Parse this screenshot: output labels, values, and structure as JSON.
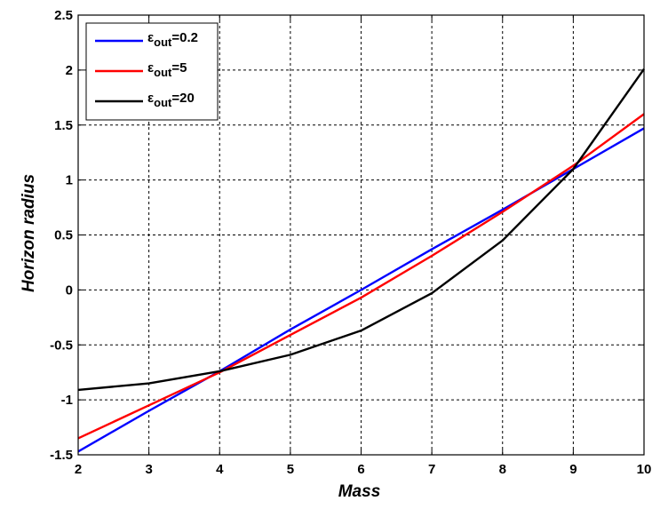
{
  "chart_data": {
    "type": "line",
    "title": "",
    "xlabel": "Mass",
    "ylabel": "Horizon radius",
    "xlim": [
      2,
      10
    ],
    "ylim": [
      -1.5,
      2.5
    ],
    "xticks": [
      2,
      3,
      4,
      5,
      6,
      7,
      8,
      9,
      10
    ],
    "yticks": [
      -1.5,
      -1,
      -0.5,
      0,
      0.5,
      1,
      1.5,
      2,
      2.5
    ],
    "xtick_labels": [
      "2",
      "3",
      "4",
      "5",
      "6",
      "7",
      "8",
      "9",
      "10"
    ],
    "ytick_labels": [
      "-1.5",
      "-1",
      "-0.5",
      "0",
      "0.5",
      "1",
      "1.5",
      "2",
      "2.5"
    ],
    "grid": true,
    "legend_position": "top-left",
    "series": [
      {
        "name": "ε_out=0.2",
        "legend_base": "ε",
        "legend_sub": "out",
        "legend_suffix": "=0.2",
        "color": "#0000ff",
        "x": [
          2,
          3,
          4,
          5,
          6,
          7,
          8,
          9,
          10
        ],
        "y": [
          -1.47,
          -1.1,
          -0.74,
          -0.36,
          0.0,
          0.37,
          0.73,
          1.1,
          1.47
        ]
      },
      {
        "name": "ε_out=5",
        "legend_base": "ε",
        "legend_sub": "out",
        "legend_suffix": "=5",
        "color": "#ff0000",
        "x": [
          2,
          3,
          4,
          5,
          6,
          7,
          8,
          9,
          10
        ],
        "y": [
          -1.35,
          -1.05,
          -0.75,
          -0.41,
          -0.07,
          0.31,
          0.71,
          1.13,
          1.6
        ]
      },
      {
        "name": "ε_out=20",
        "legend_base": "ε",
        "legend_sub": "out",
        "legend_suffix": "=20",
        "color": "#000000",
        "x": [
          2,
          3,
          4,
          5,
          6,
          7,
          8,
          9,
          10
        ],
        "y": [
          -0.91,
          -0.85,
          -0.74,
          -0.59,
          -0.37,
          -0.03,
          0.45,
          1.1,
          2.01
        ]
      }
    ]
  }
}
